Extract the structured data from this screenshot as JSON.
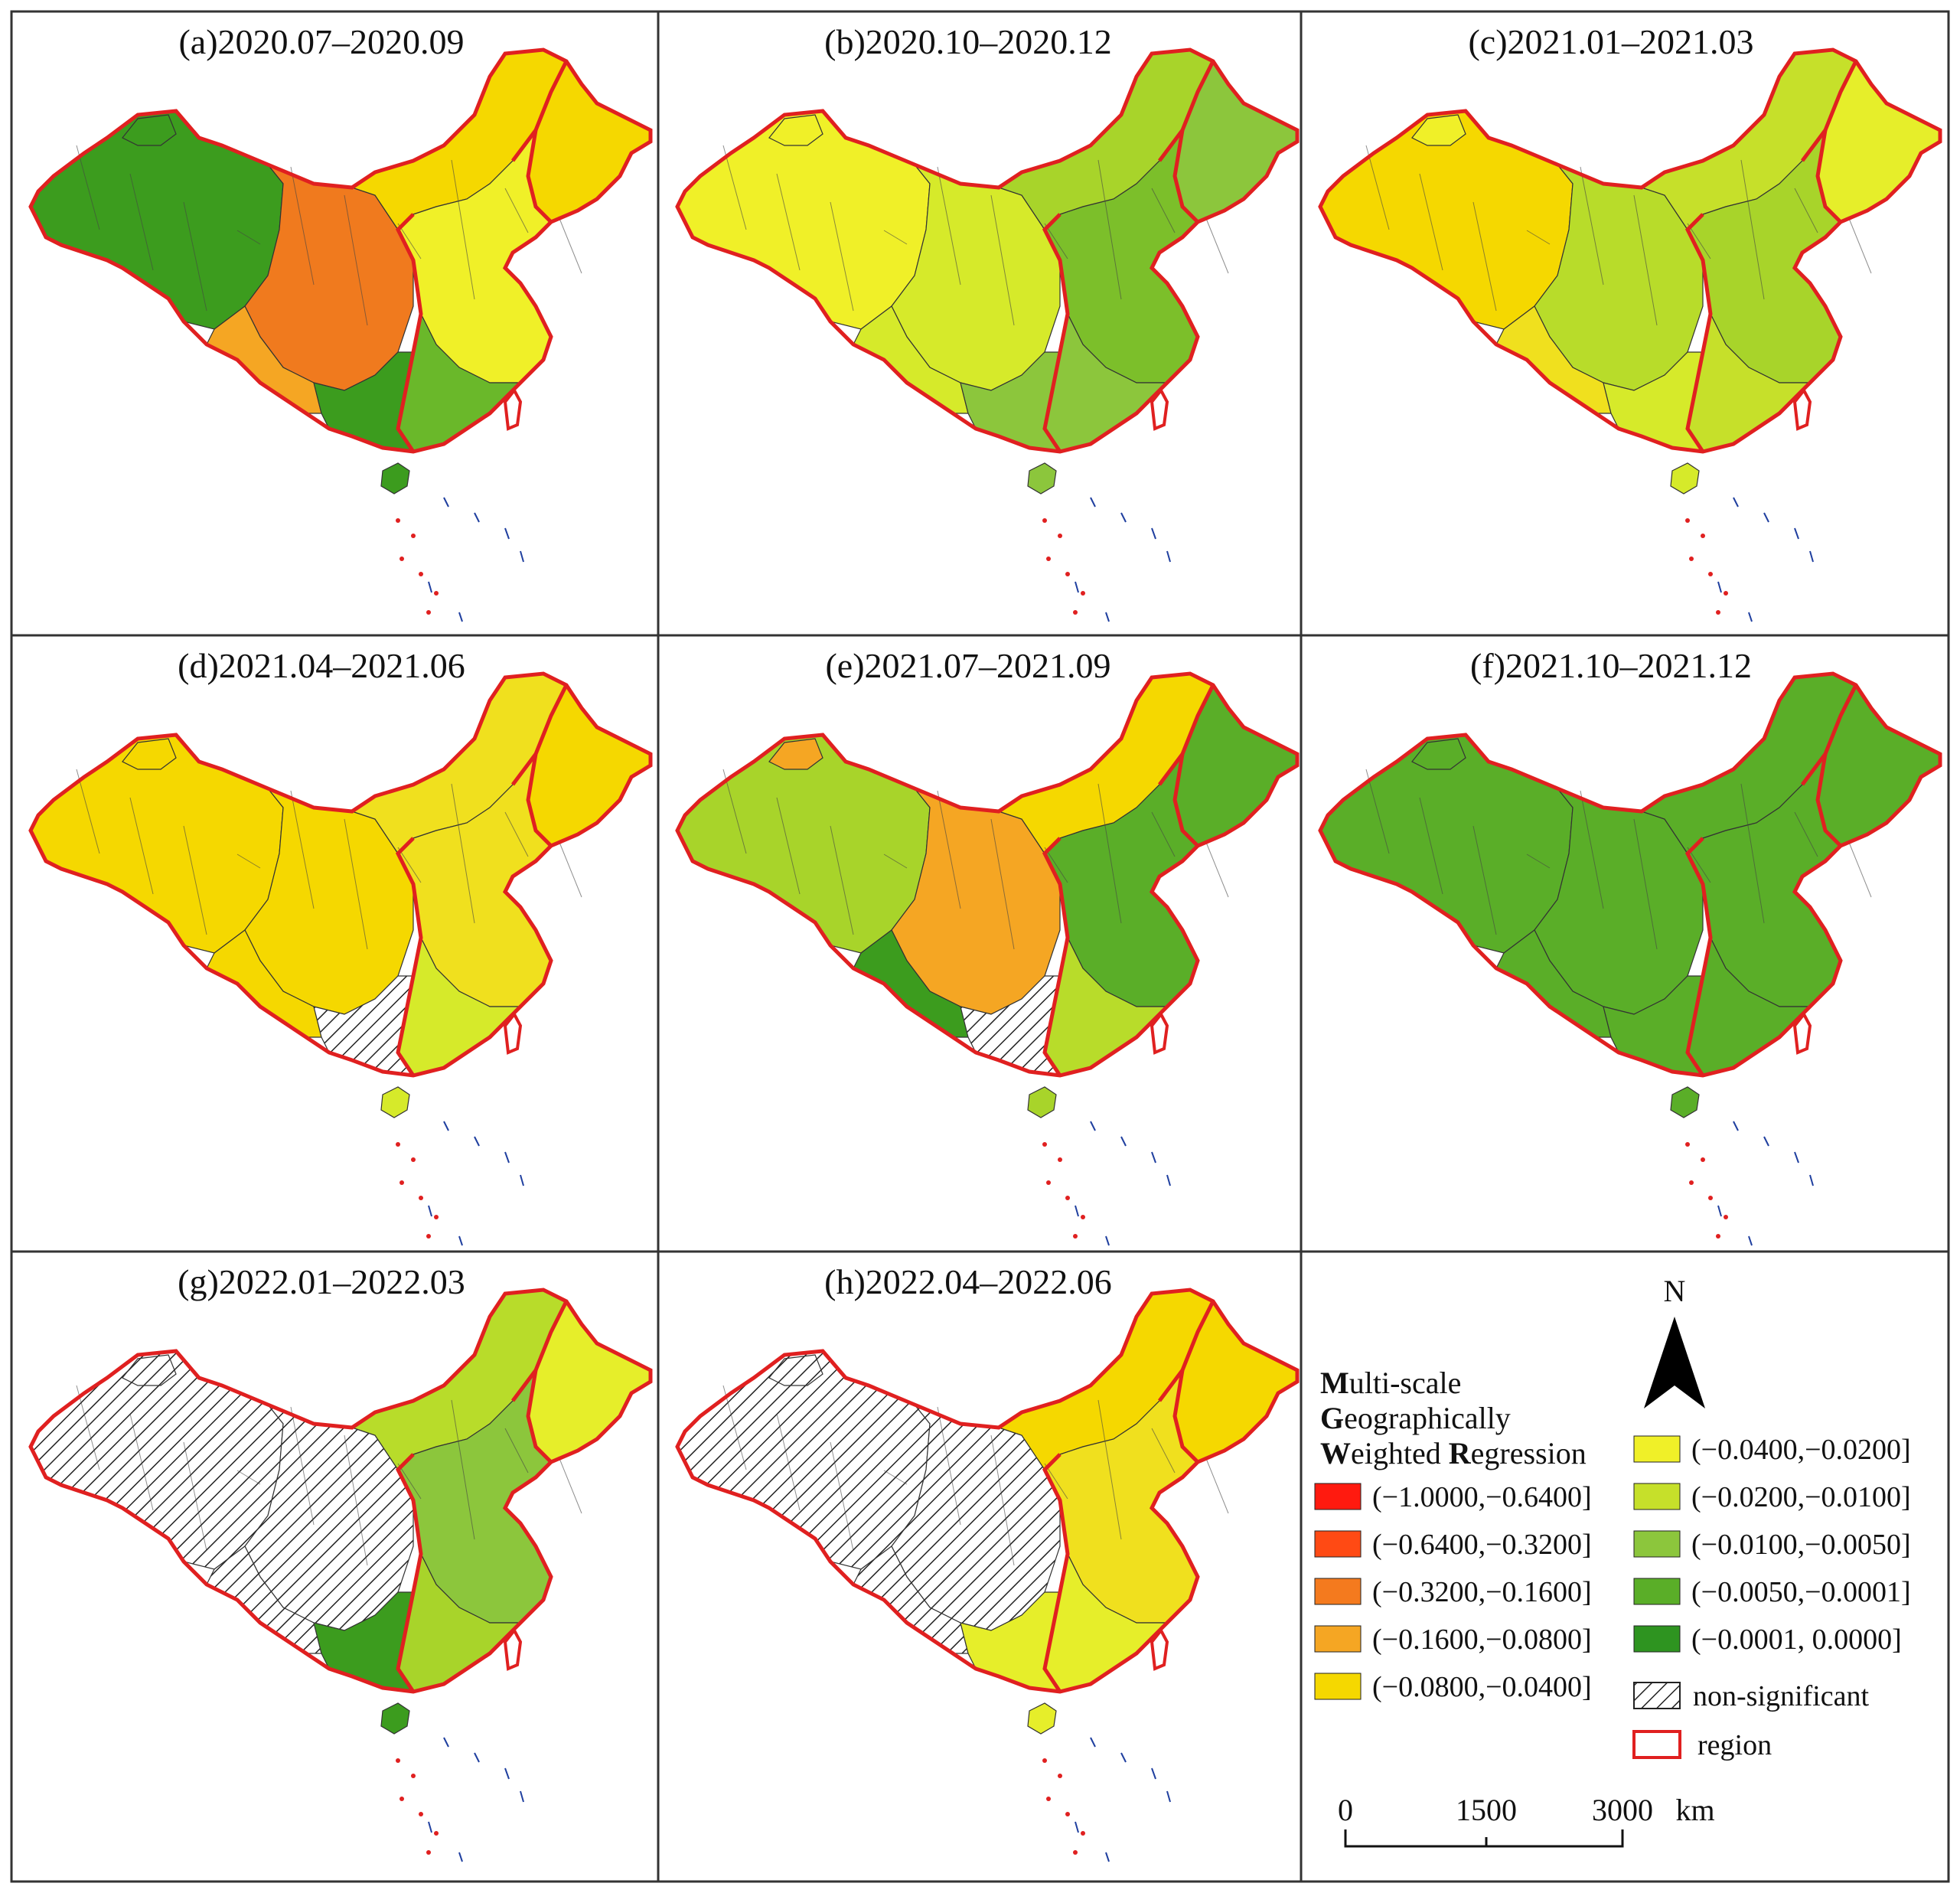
{
  "panels": [
    {
      "id": "a",
      "title": "(a)2020.07–2020.09",
      "fills": {
        "west": "#3c9c1e",
        "northwest_tip": "#3c9c1e",
        "central": "#f07a1e",
        "southwest": "#f5a623",
        "north": "#f5d800",
        "northeast": "#f5d800",
        "east": "#f0f028",
        "southeast": "#6ab82a",
        "south": "#3c9c1e",
        "hainan": "#3c9c1e"
      }
    },
    {
      "id": "b",
      "title": "(b)2020.10–2020.12",
      "fills": {
        "west": "#f0f028",
        "northwest_tip": "#f0f028",
        "central": "#d6ea2a",
        "southwest": "#d6ea2a",
        "north": "#a8d42a",
        "northeast": "#8cc63c",
        "east": "#7cbf2a",
        "southeast": "#8cc63c",
        "south": "#8cc63c",
        "hainan": "#8cc63c"
      }
    },
    {
      "id": "c",
      "title": "(c)2021.01–2021.03",
      "fills": {
        "west": "#f5d800",
        "northwest_tip": "#f0f028",
        "central": "#b8dc2a",
        "southwest": "#f0e01e",
        "north": "#c6e02a",
        "northeast": "#e6ee2a",
        "east": "#a8d42a",
        "southeast": "#c6e02a",
        "south": "#d6ea2a",
        "hainan": "#d6ea2a"
      }
    },
    {
      "id": "d",
      "title": "(d)2021.04–2021.06",
      "fills": {
        "west": "#f5d800",
        "northwest_tip": "#f5d800",
        "central": "#f5d800",
        "southwest": "#f5d800",
        "north": "#f0e01e",
        "northeast": "#f5d800",
        "east": "#f0e01e",
        "southeast": "#d6ea2a",
        "south": "hatch",
        "hainan": "#d6ea2a"
      }
    },
    {
      "id": "e",
      "title": "(e)2021.07–2021.09",
      "fills": {
        "west": "#a8d42a",
        "northwest_tip": "#f5a623",
        "central": "#f5a623",
        "southwest": "#3c9c1e",
        "north": "#f5d800",
        "northeast": "#5aae28",
        "east": "#5aae28",
        "southeast": "#b8dc2a",
        "south": "hatch",
        "hainan": "#a8d42a"
      }
    },
    {
      "id": "f",
      "title": "(f)2021.10–2021.12",
      "fills": {
        "west": "#5aae28",
        "northwest_tip": "#5aae28",
        "central": "#5aae28",
        "southwest": "#5aae28",
        "north": "#5aae28",
        "northeast": "#5aae28",
        "east": "#5aae28",
        "southeast": "#5aae28",
        "south": "#5aae28",
        "hainan": "#5aae28"
      }
    },
    {
      "id": "g",
      "title": "(g)2022.01–2022.03",
      "fills": {
        "west": "hatch",
        "northwest_tip": "hatch",
        "central": "hatch",
        "southwest": "hatch",
        "north": "#b8dc2a",
        "northeast": "#e6ee2a",
        "east": "#8cc63c",
        "southeast": "#a8d42a",
        "south": "#3c9c1e",
        "hainan": "#3c9c1e"
      }
    },
    {
      "id": "h",
      "title": "(h)2022.04–2022.06",
      "fills": {
        "west": "hatch",
        "northwest_tip": "hatch",
        "central": "hatch",
        "southwest": "hatch",
        "north": "#f5d800",
        "northeast": "#f5d800",
        "east": "#f0e01e",
        "southeast": "#e6ee2a",
        "south": "#e6ee2a",
        "hainan": "#e6ee2a"
      }
    }
  ],
  "legend": {
    "north_label": "N",
    "title_lines": [
      [
        {
          "bold": "M",
          "rest": "ulti-scale"
        }
      ],
      [
        {
          "bold": "G",
          "rest": "eographically"
        }
      ],
      [
        {
          "bold": "W",
          "rest": "eighted "
        },
        {
          "bold": "R",
          "rest": "egression"
        }
      ]
    ],
    "classes_left": [
      {
        "label": "(−1.0000,−0.6400]",
        "color": "#ff1a0f"
      },
      {
        "label": "(−0.6400,−0.3200]",
        "color": "#ff4a14"
      },
      {
        "label": "(−0.3200,−0.1600]",
        "color": "#f47a1e"
      },
      {
        "label": "(−0.1600,−0.0800]",
        "color": "#f5a623"
      },
      {
        "label": "(−0.0800,−0.0400]",
        "color": "#f5d800"
      }
    ],
    "classes_right": [
      {
        "label": "(−0.0400,−0.0200]",
        "color": "#f0f028"
      },
      {
        "label": "(−0.0200,−0.0100]",
        "color": "#c6e02a"
      },
      {
        "label": "(−0.0100,−0.0050]",
        "color": "#8cc63c"
      },
      {
        "label": "(−0.0050,−0.0001]",
        "color": "#5aae28"
      },
      {
        "label": "(−0.0001, 0.0000]",
        "color": "#2e9420"
      }
    ],
    "non_significant_label": "non-significant",
    "region_label": "region",
    "region_color": "#e02020",
    "scale": {
      "ticks": [
        "0",
        "1500",
        "3000"
      ],
      "unit": "km"
    }
  }
}
